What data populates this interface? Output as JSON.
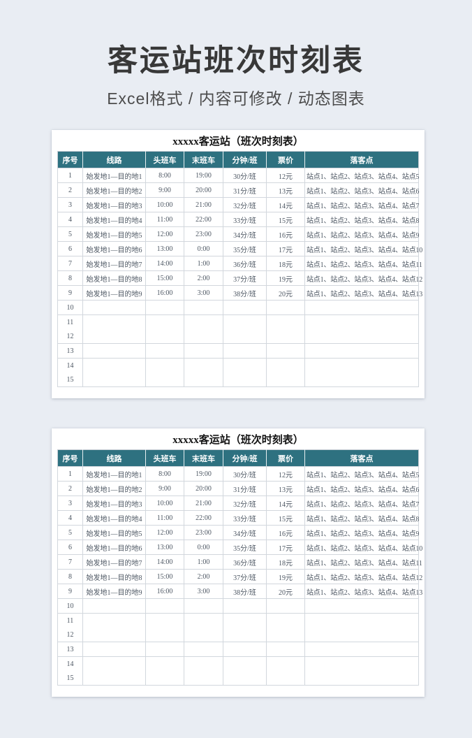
{
  "page": {
    "title": "客运站班次时刻表",
    "subtitle": "Excel格式 / 内容可修改 / 动态图表"
  },
  "colors": {
    "header_bg": "#2e7180",
    "page_bg": "#e9edf3",
    "card_bg": "#ffffff",
    "title_text": "#383838",
    "muted_text": "#6f7b90",
    "border": "#d2d7dd"
  },
  "tables": [
    {
      "title": "xxxxx客运站（班次时刻表）",
      "headers": [
        "序号",
        "线路",
        "头班车",
        "末班车",
        "分钟/班",
        "票价",
        "落客点"
      ],
      "rows": [
        [
          "1",
          "始发地1—目的地1",
          "8:00",
          "19:00",
          "30分/班",
          "12元",
          "站点1、站点2、站点3、站点4、站点5"
        ],
        [
          "2",
          "始发地1—目的地2",
          "9:00",
          "20:00",
          "31分/班",
          "13元",
          "站点1、站点2、站点3、站点4、站点6"
        ],
        [
          "3",
          "始发地1—目的地3",
          "10:00",
          "21:00",
          "32分/班",
          "14元",
          "站点1、站点2、站点3、站点4、站点7"
        ],
        [
          "4",
          "始发地1—目的地4",
          "11:00",
          "22:00",
          "33分/班",
          "15元",
          "站点1、站点2、站点3、站点4、站点8"
        ],
        [
          "5",
          "始发地1—目的地5",
          "12:00",
          "23:00",
          "34分/班",
          "16元",
          "站点1、站点2、站点3、站点4、站点9"
        ],
        [
          "6",
          "始发地1—目的地6",
          "13:00",
          "0:00",
          "35分/班",
          "17元",
          "站点1、站点2、站点3、站点4、站点10"
        ],
        [
          "7",
          "始发地1—目的地7",
          "14:00",
          "1:00",
          "36分/班",
          "18元",
          "站点1、站点2、站点3、站点4、站点11"
        ],
        [
          "8",
          "始发地1—目的地8",
          "15:00",
          "2:00",
          "37分/班",
          "19元",
          "站点1、站点2、站点3、站点4、站点12"
        ],
        [
          "9",
          "始发地1—目的地9",
          "16:00",
          "3:00",
          "38分/班",
          "20元",
          "站点1、站点2、站点3、站点4、站点13"
        ]
      ],
      "empty_rows": [
        "10",
        "11",
        "12",
        "13",
        "14",
        "15"
      ]
    },
    {
      "title": "xxxxx客运站（班次时刻表）",
      "headers": [
        "序号",
        "线路",
        "头班车",
        "末班车",
        "分钟/班",
        "票价",
        "落客点"
      ],
      "rows": [
        [
          "1",
          "始发地1—目的地1",
          "8:00",
          "19:00",
          "30分/班",
          "12元",
          "站点1、站点2、站点3、站点4、站点5"
        ],
        [
          "2",
          "始发地1—目的地2",
          "9:00",
          "20:00",
          "31分/班",
          "13元",
          "站点1、站点2、站点3、站点4、站点6"
        ],
        [
          "3",
          "始发地1—目的地3",
          "10:00",
          "21:00",
          "32分/班",
          "14元",
          "站点1、站点2、站点3、站点4、站点7"
        ],
        [
          "4",
          "始发地1—目的地4",
          "11:00",
          "22:00",
          "33分/班",
          "15元",
          "站点1、站点2、站点3、站点4、站点8"
        ],
        [
          "5",
          "始发地1—目的地5",
          "12:00",
          "23:00",
          "34分/班",
          "16元",
          "站点1、站点2、站点3、站点4、站点9"
        ],
        [
          "6",
          "始发地1—目的地6",
          "13:00",
          "0:00",
          "35分/班",
          "17元",
          "站点1、站点2、站点3、站点4、站点10"
        ],
        [
          "7",
          "始发地1—目的地7",
          "14:00",
          "1:00",
          "36分/班",
          "18元",
          "站点1、站点2、站点3、站点4、站点11"
        ],
        [
          "8",
          "始发地1—目的地8",
          "15:00",
          "2:00",
          "37分/班",
          "19元",
          "站点1、站点2、站点3、站点4、站点12"
        ],
        [
          "9",
          "始发地1—目的地9",
          "16:00",
          "3:00",
          "38分/班",
          "20元",
          "站点1、站点2、站点3、站点4、站点13"
        ]
      ],
      "empty_rows": [
        "10",
        "11",
        "12",
        "13",
        "14",
        "15"
      ]
    }
  ]
}
